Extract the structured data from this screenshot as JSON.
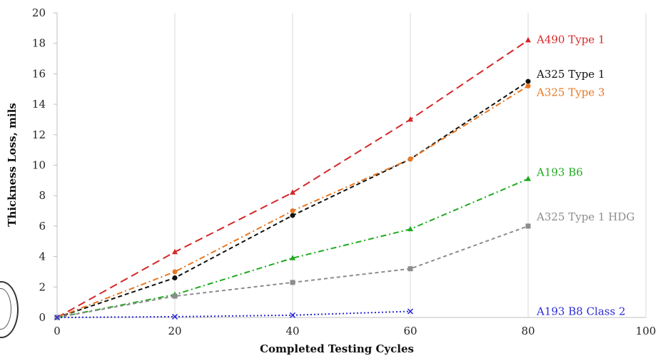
{
  "chart_data": {
    "type": "line",
    "xlabel": "Completed Testing Cycles",
    "ylabel": "Thickness Loss, mils",
    "xlim": [
      0,
      100
    ],
    "ylim": [
      0,
      20
    ],
    "xticks": [
      "0",
      "20",
      "40",
      "60",
      "80",
      "100"
    ],
    "yticks": [
      "0",
      "2",
      "4",
      "6",
      "8",
      "10",
      "12",
      "14",
      "16",
      "18",
      "20"
    ],
    "grid": "vertical",
    "legend": "inline labels at line ends",
    "series": [
      {
        "name": "A490 Type 1",
        "color": "#d62728",
        "marker": "triangle",
        "dash": "long-dash",
        "x": [
          0,
          20,
          40,
          60,
          80
        ],
        "y": [
          0,
          4.3,
          8.2,
          13.0,
          18.2
        ]
      },
      {
        "name": "A325 Type 1",
        "color": "#111111",
        "marker": "circle",
        "dash": "dash",
        "x": [
          0,
          20,
          40,
          60,
          80
        ],
        "y": [
          0,
          2.6,
          6.7,
          10.4,
          15.5
        ]
      },
      {
        "name": "A325 Type 3",
        "color": "#e87722",
        "marker": "circle",
        "dash": "dash-dot",
        "x": [
          0,
          20,
          40,
          60,
          80
        ],
        "y": [
          0,
          3.0,
          7.0,
          10.4,
          15.2
        ]
      },
      {
        "name": "A193 B6",
        "color": "#1faa1f",
        "marker": "triangle",
        "dash": "dash-dot",
        "x": [
          0,
          20,
          40,
          60,
          80
        ],
        "y": [
          0,
          1.5,
          3.9,
          5.8,
          9.1
        ]
      },
      {
        "name": "A325 Type 1 HDG",
        "color": "#8c8c8c",
        "marker": "square",
        "dash": "short-dash",
        "x": [
          0,
          20,
          40,
          60,
          80
        ],
        "y": [
          0,
          1.4,
          2.3,
          3.2,
          6.0
        ]
      },
      {
        "name": "A193 B8 Class 2",
        "color": "#2b2bd6",
        "marker": "x",
        "dash": "dot",
        "x": [
          0,
          20,
          40,
          60
        ],
        "y": [
          0,
          0.05,
          0.15,
          0.4
        ]
      }
    ]
  }
}
